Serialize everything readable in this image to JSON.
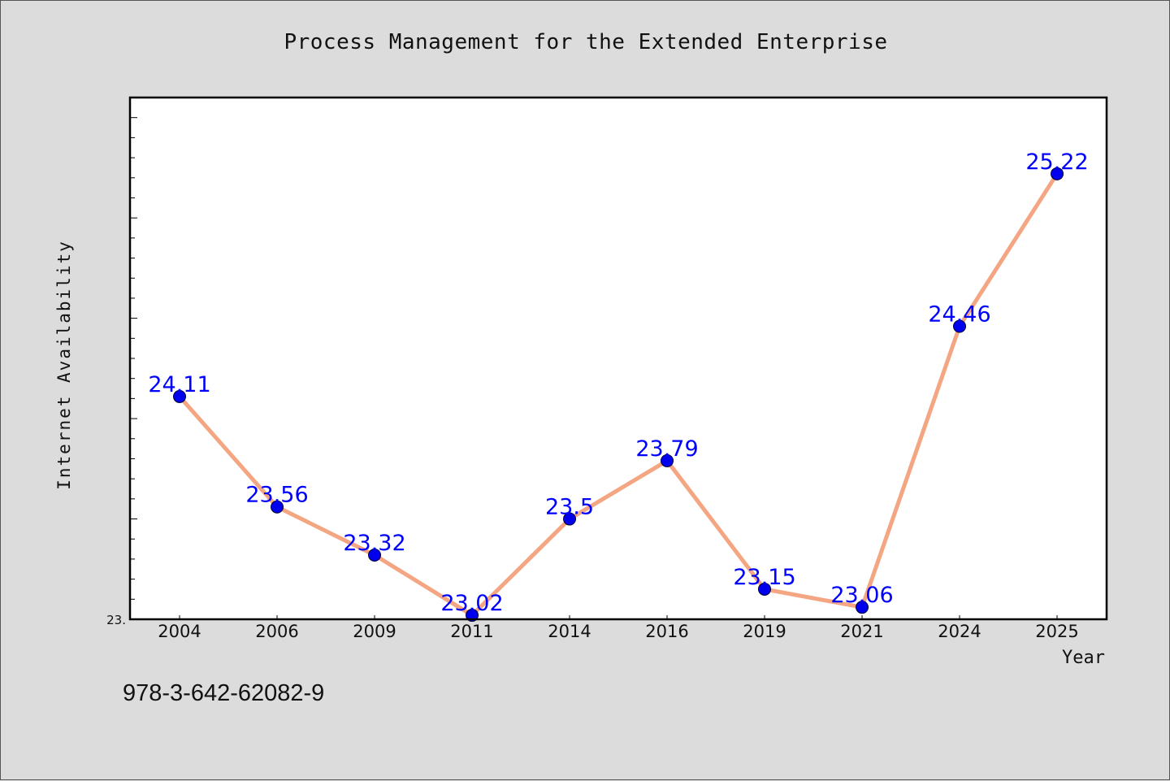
{
  "chart_data": {
    "type": "line",
    "title": "Process Management for the Extended Enterprise",
    "xlabel": "Year",
    "ylabel": "Internet Availability",
    "categories": [
      "2004",
      "2006",
      "2009",
      "2011",
      "2014",
      "2016",
      "2019",
      "2021",
      "2024",
      "2025"
    ],
    "values": [
      24.11,
      23.56,
      23.32,
      23.02,
      23.5,
      23.79,
      23.15,
      23.06,
      24.46,
      25.22
    ],
    "data_labels": [
      "24.11",
      "23.56",
      "23.32",
      "23.02",
      "23.5",
      "23.79",
      "23.15",
      "23.06",
      "24.46",
      "25.22"
    ],
    "ylim": [
      23.0,
      25.6
    ],
    "y_tick_labels": [
      "23."
    ],
    "grid": false,
    "line_color": "#f4a582",
    "marker_color": "#0000ee",
    "label_color": "#0000ff"
  },
  "footer_text": "978-3-642-62082-9"
}
